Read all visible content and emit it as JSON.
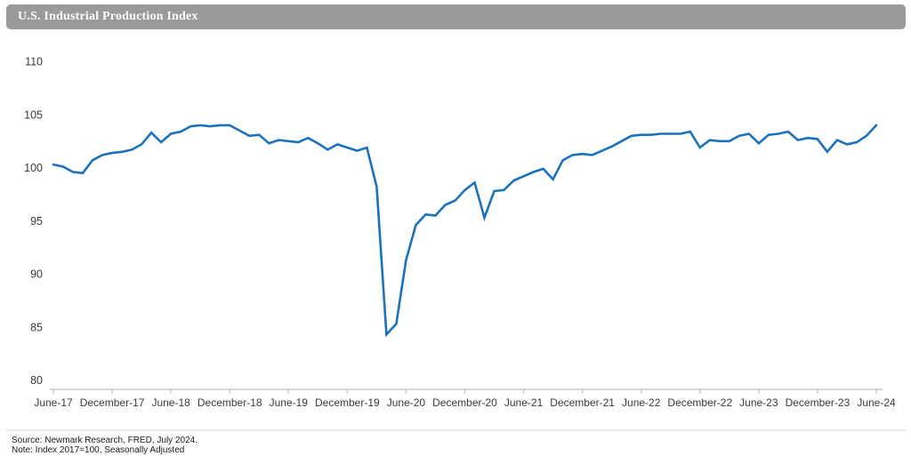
{
  "header": {
    "title": "U.S. Industrial Production Index",
    "bg_color": "#9A9A9A",
    "text_color": "#FFFFFF"
  },
  "chart_data": {
    "type": "line",
    "title": "U.S. Industrial Production Index",
    "series_name": "Industrial Production Index",
    "frequency": "monthly",
    "x_start": "June-2017",
    "x_end": "June-2024",
    "xlabel": "",
    "ylabel": "",
    "ylim": [
      80,
      110
    ],
    "y_ticks": [
      80,
      85,
      90,
      95,
      100,
      105,
      110
    ],
    "grid": false,
    "legend": "none",
    "line_color": "#1B72BC",
    "axis_color": "#CCCCCC",
    "tick_label_color": "#3A3A3A",
    "x_tick_labels": [
      "June-17",
      "December-17",
      "June-18",
      "December-18",
      "June-19",
      "December-19",
      "June-20",
      "December-20",
      "June-21",
      "December-21",
      "June-22",
      "December-22",
      "June-23",
      "December-23",
      "June-24"
    ],
    "values": [
      100.3,
      100.1,
      99.6,
      99.5,
      100.7,
      101.2,
      101.4,
      101.5,
      101.7,
      102.2,
      103.3,
      102.4,
      103.2,
      103.4,
      103.9,
      104.0,
      103.9,
      104.0,
      104.0,
      103.5,
      103.0,
      103.1,
      102.3,
      102.6,
      102.5,
      102.4,
      102.8,
      102.3,
      101.7,
      102.2,
      101.9,
      101.6,
      101.9,
      98.2,
      84.3,
      85.3,
      91.3,
      94.6,
      95.6,
      95.5,
      96.5,
      96.9,
      97.9,
      98.6,
      95.3,
      97.8,
      97.9,
      98.8,
      99.2,
      99.6,
      99.9,
      98.9,
      100.7,
      101.2,
      101.3,
      101.2,
      101.6,
      102.0,
      102.5,
      103.0,
      103.1,
      103.1,
      103.2,
      103.2,
      103.2,
      103.4,
      101.9,
      102.6,
      102.5,
      102.5,
      103.0,
      103.2,
      102.3,
      103.1,
      103.2,
      103.4,
      102.6,
      102.8,
      102.7,
      101.5,
      102.6,
      102.2,
      102.4,
      103.0,
      104.0
    ]
  },
  "footer": {
    "source_line": "Source: Newmark Research, FRED, July 2024.",
    "note_line": "Note: Index 2017=100, Seasonally Adjusted"
  }
}
